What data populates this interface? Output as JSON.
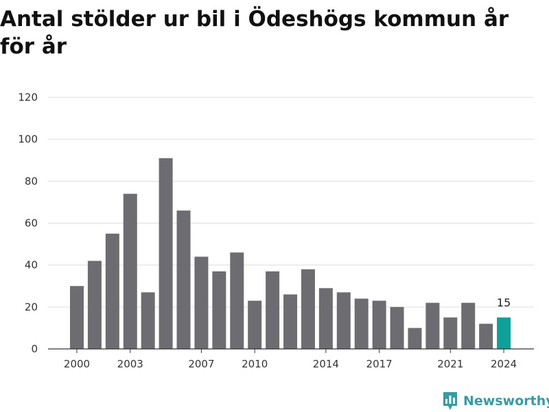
{
  "title": "Antal stölder ur bil i Ödeshögs kommun år för år",
  "brand": {
    "name": "Newsworthy",
    "icon": "bar-chart-logo-icon"
  },
  "colors": {
    "bar": "#6d6c71",
    "highlight": "#0fa199",
    "grid": "#dddddd",
    "axis": "#333333",
    "brand": "#3a9aa3"
  },
  "chart_data": {
    "type": "bar",
    "title": "Antal stölder ur bil i Ödeshögs kommun år för år",
    "xlabel": "",
    "ylabel": "",
    "x": [
      2000,
      2001,
      2002,
      2003,
      2004,
      2005,
      2006,
      2007,
      2008,
      2009,
      2010,
      2011,
      2012,
      2013,
      2014,
      2015,
      2016,
      2017,
      2018,
      2019,
      2020,
      2021,
      2022,
      2023,
      2024
    ],
    "values": [
      30,
      42,
      55,
      74,
      27,
      91,
      66,
      44,
      37,
      46,
      23,
      37,
      26,
      38,
      29,
      27,
      24,
      23,
      20,
      10,
      22,
      15,
      22,
      12,
      15
    ],
    "x_tick_labels": [
      "2000",
      "2003",
      "2007",
      "2010",
      "2014",
      "2017",
      "2021",
      "2024"
    ],
    "y_ticks": [
      0,
      20,
      40,
      60,
      80,
      100,
      120
    ],
    "ylim": [
      0,
      120
    ],
    "grid": true,
    "highlight": {
      "x": 2024,
      "label": "15"
    }
  }
}
